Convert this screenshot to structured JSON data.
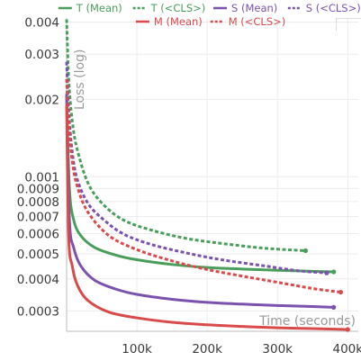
{
  "chart_data": {
    "type": "line",
    "xlabel": "Time (seconds)",
    "ylabel": "Loss (log)",
    "x_scale": "linear",
    "y_scale": "log",
    "xlim": [
      0,
      415000
    ],
    "ylim": [
      0.00025,
      0.00415
    ],
    "x_ticks": [
      {
        "value": 100000,
        "label": "100k"
      },
      {
        "value": 200000,
        "label": "200k"
      },
      {
        "value": 300000,
        "label": "300k"
      },
      {
        "value": 400000,
        "label": "400k"
      }
    ],
    "y_ticks": [
      {
        "value": 0.004,
        "label": "0.004"
      },
      {
        "value": 0.003,
        "label": "0.003"
      },
      {
        "value": 0.002,
        "label": "0.002"
      },
      {
        "value": 0.001,
        "label": "0.001"
      },
      {
        "value": 0.0009,
        "label": "0.0009"
      },
      {
        "value": 0.0008,
        "label": "0.0008"
      },
      {
        "value": 0.0007,
        "label": "0.0007"
      },
      {
        "value": 0.0006,
        "label": "0.0006"
      },
      {
        "value": 0.0005,
        "label": "0.0005"
      },
      {
        "value": 0.0004,
        "label": "0.0004"
      },
      {
        "value": 0.0003,
        "label": "0.0003"
      }
    ],
    "legend_position": "top",
    "series": [
      {
        "name": "T (Mean)",
        "color": "#4a9e5c",
        "dash": "solid",
        "x": [
          0,
          4000,
          10000,
          20000,
          40000,
          70000,
          100000,
          150000,
          200000,
          250000,
          300000,
          350000,
          380000
        ],
        "y": [
          0.0021,
          0.0009,
          0.00068,
          0.00059,
          0.00053,
          0.000495,
          0.000475,
          0.000455,
          0.000443,
          0.000437,
          0.000432,
          0.000428,
          0.000426
        ]
      },
      {
        "name": "T (<CLS>)",
        "color": "#4a9e5c",
        "dash": "dashed",
        "x": [
          0,
          3000,
          8000,
          15000,
          30000,
          50000,
          80000,
          120000,
          170000,
          220000,
          280000,
          340000
        ],
        "y": [
          0.0041,
          0.0024,
          0.00165,
          0.00128,
          0.00095,
          0.00079,
          0.00068,
          0.00062,
          0.000575,
          0.00055,
          0.000527,
          0.000515
        ]
      },
      {
        "name": "S (Mean)",
        "color": "#7b52ae",
        "dash": "solid",
        "x": [
          0,
          4000,
          10000,
          20000,
          40000,
          70000,
          100000,
          150000,
          200000,
          250000,
          300000,
          350000,
          380000
        ],
        "y": [
          0.0021,
          0.00068,
          0.00053,
          0.00045,
          0.000395,
          0.000365,
          0.000348,
          0.000333,
          0.000324,
          0.000319,
          0.000315,
          0.000312,
          0.00031
        ]
      },
      {
        "name": "S (<CLS>)",
        "color": "#7b52ae",
        "dash": "dashed",
        "x": [
          0,
          3000,
          8000,
          15000,
          30000,
          50000,
          80000,
          120000,
          170000,
          220000,
          280000,
          330000,
          370000
        ],
        "y": [
          0.0028,
          0.0018,
          0.00125,
          0.00098,
          0.00079,
          0.00069,
          0.0006,
          0.000545,
          0.000505,
          0.000475,
          0.00045,
          0.00043,
          0.000422
        ]
      },
      {
        "name": "M (Mean)",
        "color": "#d94a4a",
        "dash": "solid",
        "x": [
          0,
          3000,
          8000,
          15000,
          30000,
          60000,
          100000,
          150000,
          200000,
          250000,
          300000,
          350000,
          400000
        ],
        "y": [
          0.0019,
          0.00058,
          0.00045,
          0.00038,
          0.00033,
          0.000297,
          0.000282,
          0.000271,
          0.000265,
          0.000261,
          0.000258,
          0.000256,
          0.000254
        ]
      },
      {
        "name": "M (<CLS>)",
        "color": "#d94a4a",
        "dash": "dashed",
        "x": [
          0,
          3000,
          8000,
          15000,
          30000,
          60000,
          100000,
          150000,
          200000,
          250000,
          300000,
          350000,
          390000
        ],
        "y": [
          0.0024,
          0.0016,
          0.00115,
          0.00092,
          0.00073,
          0.00059,
          0.00052,
          0.00047,
          0.000435,
          0.00041,
          0.000388,
          0.000367,
          0.000355
        ]
      }
    ]
  }
}
